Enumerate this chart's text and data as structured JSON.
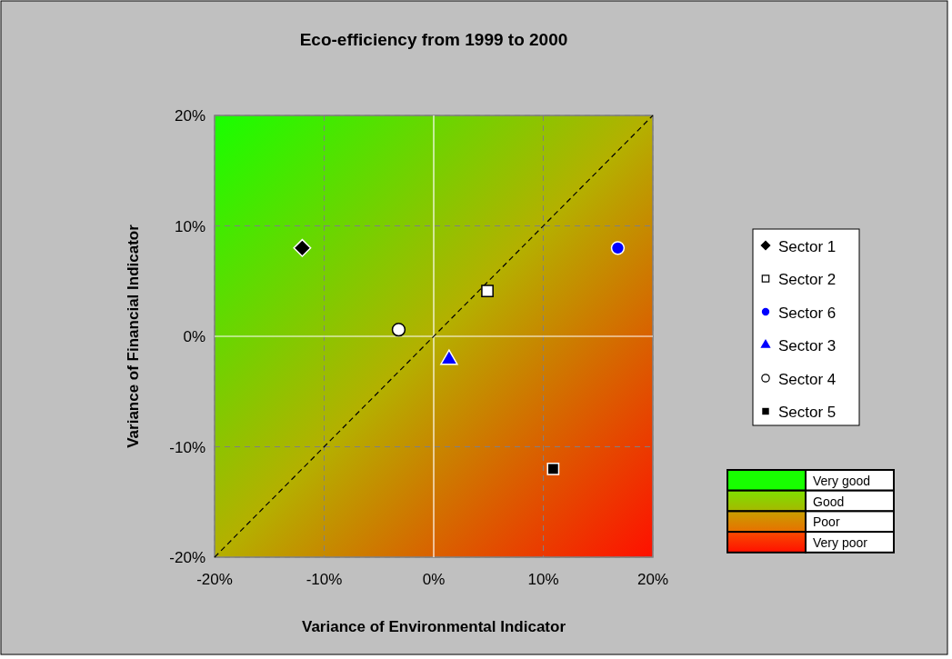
{
  "chart_data": {
    "type": "scatter",
    "title": "Eco-efficiency from 1999 to 2000",
    "xlabel": "Variance of Environmental Indicator",
    "ylabel": "Variance of Financial Indicator",
    "xlim": [
      -20,
      20
    ],
    "ylim": [
      -20,
      20
    ],
    "xticks": [
      {
        "value": -20,
        "label": "-20%"
      },
      {
        "value": -10,
        "label": "-10%"
      },
      {
        "value": 0,
        "label": "0%"
      },
      {
        "value": 10,
        "label": "10%"
      },
      {
        "value": 20,
        "label": "20%"
      }
    ],
    "yticks": [
      {
        "value": -20,
        "label": "-20%"
      },
      {
        "value": -10,
        "label": "-10%"
      },
      {
        "value": 0,
        "label": "0%"
      },
      {
        "value": 10,
        "label": "10%"
      },
      {
        "value": 20,
        "label": "20%"
      }
    ],
    "grid": true,
    "legend": "right",
    "annotations": [
      "Very good",
      "Good",
      "Poor",
      "Very poor"
    ],
    "series": [
      {
        "type": "line",
        "x": [
          -20,
          20
        ],
        "values": [
          -20,
          20
        ],
        "color": "#000000",
        "line_style": "dashed",
        "marker": "none"
      },
      {
        "name": "Sector 1",
        "x": [
          -12
        ],
        "values": [
          8
        ],
        "color": "#000000",
        "marker": "diamond"
      },
      {
        "name": "Sector 2",
        "x": [
          4.9
        ],
        "values": [
          4.1
        ],
        "color": "#ffffff",
        "marker": "square"
      },
      {
        "name": "Sector 6",
        "x": [
          16.8
        ],
        "values": [
          8
        ],
        "color": "#0000ff",
        "marker": "circle"
      },
      {
        "name": "Sector 3",
        "x": [
          1.4
        ],
        "values": [
          -2.1
        ],
        "color": "#0000ff",
        "marker": "triangle"
      },
      {
        "name": "Sector 4",
        "x": [
          -3.2
        ],
        "values": [
          0.6
        ],
        "color": "#ffffff",
        "marker": "circle"
      },
      {
        "name": "Sector 5",
        "x": [
          10.9
        ],
        "values": [
          -12
        ],
        "color": "#000000",
        "marker": "square"
      }
    ]
  }
}
